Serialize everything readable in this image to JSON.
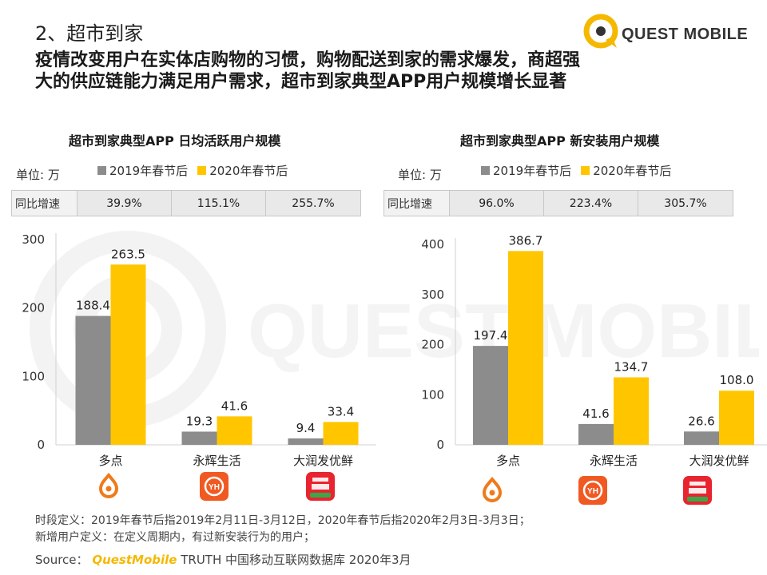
{
  "section_title": "2、超市到家",
  "headline": "疫情改变用户在实体店购物的习惯，购物配送到家的需求爆发，商超强大的供应链能力满足用户需求，超市到家典型APP用户规模增长显著",
  "logo": {
    "text": "QUEST MOBILE",
    "watermark_text": "QUEST MOBILE"
  },
  "colors": {
    "series_2019": "#8c8c8c",
    "series_2020": "#ffc600",
    "logo_yellow": "#f5b800"
  },
  "chart_data": [
    {
      "type": "bar",
      "title": "超市到家典型APP 日均活跃用户规模",
      "unit": "单位: 万",
      "categories": [
        "多点",
        "永辉生活",
        "大润发优鲜"
      ],
      "series": [
        {
          "name": "2019年春节后",
          "values": [
            188.4,
            19.3,
            9.4
          ]
        },
        {
          "name": "2020年春节后",
          "values": [
            263.5,
            41.6,
            33.4
          ]
        }
      ],
      "yoy_label": "同比增速",
      "yoy": [
        "39.9%",
        "115.1%",
        "255.7%"
      ],
      "ylim": [
        0,
        300
      ],
      "yticks": [
        0,
        100,
        200,
        300
      ],
      "legend": "top"
    },
    {
      "type": "bar",
      "title": "超市到家典型APP 新安装用户规模",
      "unit": "单位: 万",
      "categories": [
        "多点",
        "永辉生活",
        "大润发优鲜"
      ],
      "series": [
        {
          "name": "2019年春节后",
          "values": [
            197.4,
            41.6,
            26.6
          ]
        },
        {
          "name": "2020年春节后",
          "values": [
            386.7,
            134.7,
            108.0
          ]
        }
      ],
      "yoy_label": "同比增速",
      "yoy": [
        "96.0%",
        "223.4%",
        "305.7%"
      ],
      "ylim": [
        0,
        400
      ],
      "yticks": [
        0,
        100,
        200,
        300,
        400
      ],
      "legend": "top"
    }
  ],
  "app_icons": [
    "dmall-logo-icon",
    "yonghui-logo-icon",
    "rt-mart-logo-icon"
  ],
  "footnotes": [
    "时段定义：2019年春节后指2019年2月11日-3月12日，2020年春节后指2020年2月3日-3月3日；",
    "新增用户定义：在定义周期内，有过新安装行为的用户；"
  ],
  "source": {
    "label": "Source：",
    "brand": "QuestMobile",
    "rest": " TRUTH 中国移动互联网数据库 2020年3月"
  }
}
